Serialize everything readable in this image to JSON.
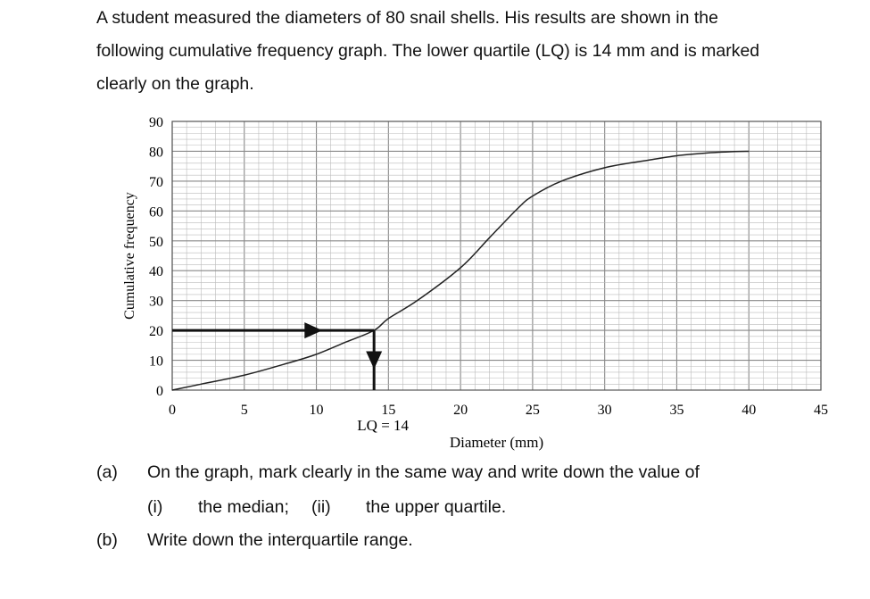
{
  "question": {
    "lines": [
      "A student measured the diameters of 80 snail shells. His results are shown in the",
      "following cumulative frequency graph. The lower quartile (LQ) is 14 mm and is marked",
      "clearly on the graph."
    ],
    "parts": {
      "a": {
        "label": "(a)",
        "text": "On the graph, mark clearly in the same way and write down the value of"
      },
      "a_i": {
        "label": "(i)",
        "text": "the median;"
      },
      "a_ii": {
        "label": "(ii)",
        "text": "the upper quartile."
      },
      "b": {
        "label": "(b)",
        "text": "Write down the interquartile range."
      }
    }
  },
  "chart_data": {
    "type": "line",
    "xlabel": "Diameter (mm)",
    "ylabel": "Cumulative frequency",
    "xlim": [
      0,
      45
    ],
    "ylim": [
      0,
      90
    ],
    "x_ticks": [
      0,
      5,
      10,
      15,
      20,
      25,
      30,
      35,
      40,
      45
    ],
    "y_ticks": [
      0,
      10,
      20,
      30,
      40,
      50,
      60,
      70,
      80,
      90
    ],
    "grid": true,
    "series": [
      {
        "x": [
          0,
          2,
          5,
          8,
          10,
          12,
          14,
          15,
          17,
          20,
          22,
          24,
          25,
          27,
          30,
          33,
          35,
          37,
          39,
          40
        ],
        "y": [
          0,
          2,
          5,
          9,
          12,
          16,
          20,
          24,
          30,
          41,
          51,
          61,
          65,
          70,
          74.5,
          77,
          78.5,
          79.4,
          79.9,
          80
        ]
      }
    ],
    "annotation": {
      "text": "LQ = 14",
      "x": 14,
      "y": 20
    }
  }
}
